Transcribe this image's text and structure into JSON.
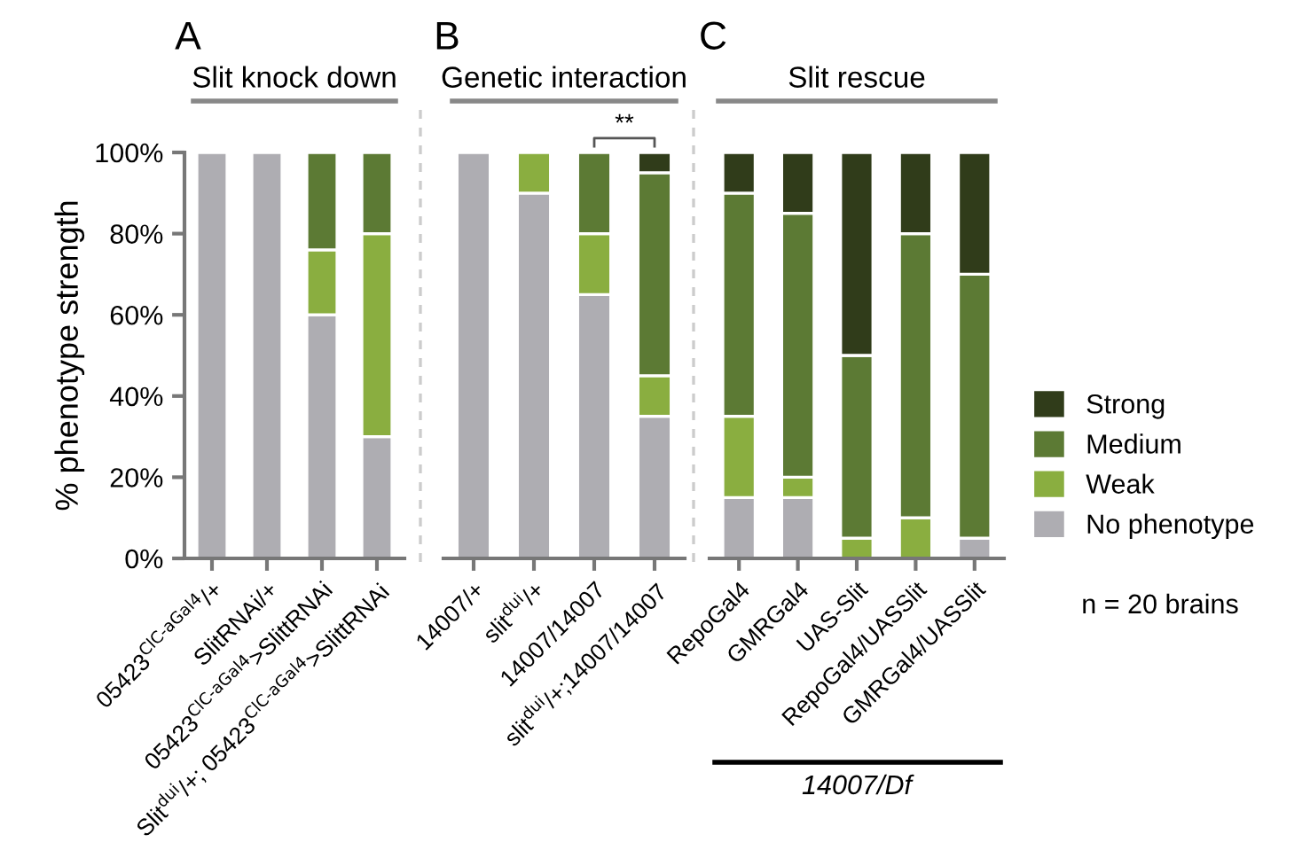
{
  "chart_data": [
    {
      "type": "bar",
      "stacked": true,
      "title": "A",
      "subtitle": "Slit knock down",
      "ylabel": "% phenotype strength",
      "categories": [
        "05423$^{ClC-aGal4}$/+",
        "SlitRNAi/+",
        "05423$^{ClC-aGal4}$>SlittRNAi",
        "Slit$^{dui}$/+; 05423$^{ClC-aGal4}$>SlittRNAi"
      ],
      "ylim": [
        0,
        100
      ],
      "yticks": [
        {
          "value": 0,
          "label": "0%"
        },
        {
          "value": 20,
          "label": "20%"
        },
        {
          "value": 40,
          "label": "40%"
        },
        {
          "value": 60,
          "label": "60%"
        },
        {
          "value": 80,
          "label": "80%"
        },
        {
          "value": 100,
          "label": "100%"
        }
      ],
      "series": [
        {
          "color": "#aeadb2",
          "values": [
            100,
            100,
            60,
            30
          ]
        },
        {
          "color": "#8aae40",
          "values": [
            0,
            0,
            16,
            50
          ]
        },
        {
          "color": "#5c7a34",
          "values": [
            0,
            0,
            24,
            20
          ]
        },
        {
          "color": "#303c1a",
          "values": [
            0,
            0,
            0,
            0
          ]
        }
      ],
      "grid": false,
      "legend": false
    },
    {
      "type": "bar",
      "stacked": true,
      "title": "B",
      "subtitle": "Genetic interaction",
      "categories": [
        "14007/+",
        "slit$^{dui}$/+",
        "14007/14007",
        "slit$^{dui}$/+;14007/14007"
      ],
      "ylim": [
        0,
        100
      ],
      "tick_labels": "x",
      "annotations": [
        "**"
      ],
      "series": [
        {
          "color": "#aeadb2",
          "values": [
            100,
            90,
            65,
            35
          ]
        },
        {
          "color": "#8aae40",
          "values": [
            0,
            10,
            15,
            10
          ]
        },
        {
          "color": "#5c7a34",
          "values": [
            0,
            0,
            20,
            50
          ]
        },
        {
          "color": "#303c1a",
          "values": [
            0,
            0,
            0,
            5
          ]
        }
      ],
      "grid": false,
      "legend": false
    },
    {
      "type": "bar",
      "stacked": true,
      "title": "C",
      "subtitle": "Slit rescue",
      "categories": [
        "RepoGal4",
        "GMRGal4",
        "UAS-Slit",
        "RepoGal4/UASSlit",
        "GMRGal4/UASSlit"
      ],
      "ylim": [
        0,
        100
      ],
      "tick_labels": "x",
      "annotations": [
        "14007/Df",
        "n = 20 brains"
      ],
      "series": [
        {
          "name": "No phenotype",
          "color": "#aeadb2",
          "values": [
            15,
            15,
            0,
            0,
            5
          ]
        },
        {
          "name": "Weak",
          "color": "#8aae40",
          "values": [
            20,
            5,
            5,
            10,
            0
          ]
        },
        {
          "name": "Medium",
          "color": "#5c7a34",
          "values": [
            55,
            65,
            45,
            70,
            65
          ]
        },
        {
          "name": "Strong",
          "color": "#303c1a",
          "values": [
            10,
            15,
            50,
            20,
            30
          ]
        }
      ],
      "grid": false,
      "legend": "right"
    }
  ]
}
